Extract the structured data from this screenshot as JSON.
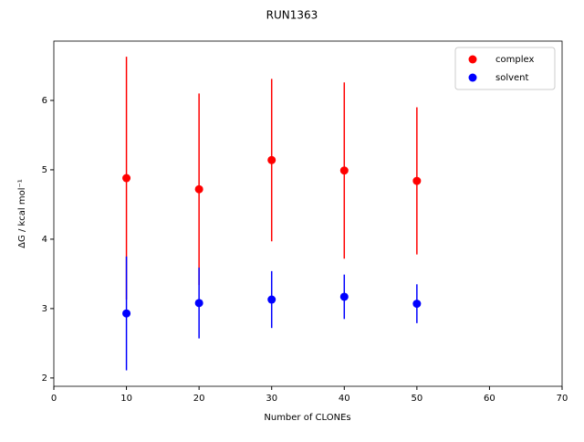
{
  "chart_data": {
    "type": "errorbar",
    "title": "RUN1363",
    "x_label": "Number of CLONEs",
    "y_label": "ΔG / kcal mol⁻¹",
    "series": [
      {
        "name": "complex",
        "color": "#ff0000",
        "x": [
          10,
          20,
          30,
          40,
          50
        ],
        "values": [
          4.88,
          4.72,
          5.14,
          4.99,
          4.84
        ],
        "errors": [
          1.75,
          1.38,
          1.17,
          1.27,
          1.06
        ]
      },
      {
        "name": "solvent",
        "color": "#0000ff",
        "x": [
          10,
          20,
          30,
          40,
          50
        ],
        "values": [
          2.93,
          3.08,
          3.13,
          3.17,
          3.07
        ],
        "errors": [
          0.82,
          0.51,
          0.41,
          0.32,
          0.28
        ]
      }
    ],
    "xlim": [
      0,
      70
    ],
    "xticks": [
      0,
      10,
      20,
      30,
      40,
      50,
      60,
      70
    ],
    "ylim": [
      1.88,
      6.855
    ],
    "yticks": [
      2,
      3,
      4,
      5,
      6
    ],
    "grid": false,
    "legend": "upper right"
  }
}
